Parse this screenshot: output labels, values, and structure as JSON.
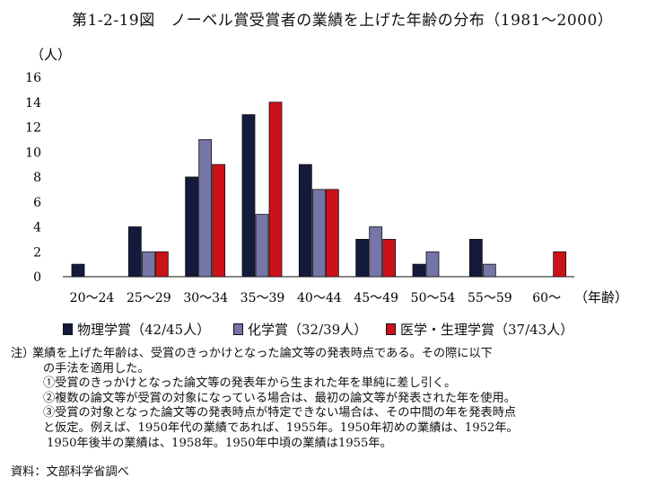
{
  "title": "第1-2-19図　ノーベル賞受賞者の業績を上げた年齢の分布（1981～2000）",
  "chart_data": {
    "type": "bar",
    "title": "第1-2-19図　ノーベル賞受賞者の業績を上げた年齢の分布（1981～2000）",
    "ylabel": "（人）",
    "xlabel": "（年齢）",
    "ylim": [
      0,
      16
    ],
    "yticks": [
      "16",
      "14",
      "12",
      "10",
      "8",
      "6",
      "4",
      "2",
      "0"
    ],
    "categories": [
      "20～24",
      "25～29",
      "30～34",
      "35～39",
      "40～44",
      "45～49",
      "50～54",
      "55～59",
      "60～"
    ],
    "grid": false,
    "legend_position": "bottom",
    "series": [
      {
        "name": "物理学賞（42/45人）",
        "color": "#141a3c",
        "values": [
          1,
          4,
          8,
          13,
          9,
          3,
          1,
          3,
          0
        ]
      },
      {
        "name": "化学賞（32/39人）",
        "color": "#7575a8",
        "values": [
          0,
          2,
          11,
          5,
          7,
          4,
          2,
          1,
          0
        ]
      },
      {
        "name": "医学・生理学賞（37/43人）",
        "color": "#cc1219",
        "values": [
          0,
          2,
          9,
          14,
          7,
          3,
          0,
          0,
          2
        ]
      }
    ]
  },
  "notes": [
    {
      "prefix": "注）",
      "text": "業績を上げた年齢は、受賞のきっかけとなった論文等の発表時点である。その際に以下"
    },
    {
      "prefix": "",
      "text": "の手法を適用した。"
    },
    {
      "prefix": "",
      "text": "①受賞のきっかけとなった論文等の発表年から生まれた年を単純に差し引く。"
    },
    {
      "prefix": "",
      "text": "②複数の論文等が受賞の対象になっている場合は、最初の論文等が発表された年を使用。"
    },
    {
      "prefix": "",
      "text": "③受賞の対象となった論文等の発表時点が特定できない場合は、その中間の年を発表時点"
    },
    {
      "prefix": "",
      "text": "と仮定。例えば、1950年代の業績であれば、1955年。1950年初めの業績は、1952年。"
    },
    {
      "prefix": "",
      "text": "1950年後半の業績は、1958年。1950年中頃の業績は1955年。"
    }
  ],
  "source": "資料：文部科学省調べ"
}
